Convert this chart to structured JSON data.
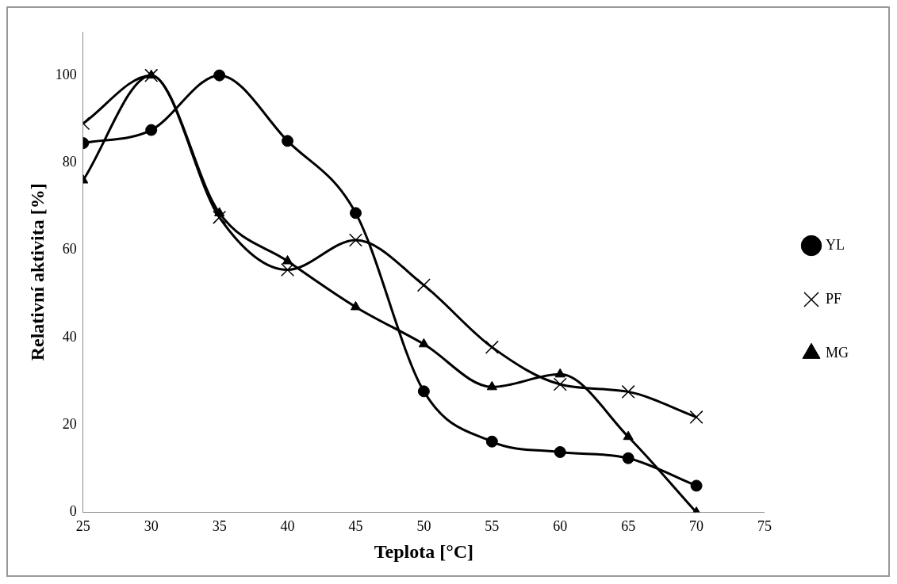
{
  "chart_data": {
    "type": "line",
    "xlabel": "Teplota [°C]",
    "ylabel": "Relativní aktivita [%]",
    "x": [
      25,
      30,
      35,
      40,
      45,
      50,
      55,
      60,
      65,
      70
    ],
    "series": [
      {
        "name": "YL",
        "color": "#000000",
        "marker": "circle",
        "values": [
          84.5,
          87.5,
          100,
          85,
          68.5,
          27.7,
          16.2,
          13.8,
          12.4,
          6.1
        ]
      },
      {
        "name": "PF",
        "color": "#000000",
        "marker": "cross",
        "values": [
          89,
          100,
          67.5,
          55.5,
          62.3,
          52,
          37.8,
          29.3,
          27.6,
          21.8
        ]
      },
      {
        "name": "MG",
        "color": "#000000",
        "marker": "triangle",
        "values": [
          76,
          100,
          68.5,
          57.5,
          47,
          38.5,
          28.7,
          31.6,
          17.3,
          0
        ]
      }
    ],
    "xlim": [
      25,
      75
    ],
    "xticks": [
      25,
      30,
      35,
      40,
      45,
      50,
      55,
      60,
      65,
      70,
      75
    ],
    "ylim": [
      0,
      110
    ],
    "yticks": [
      0,
      20,
      40,
      60,
      80,
      100
    ],
    "grid": false,
    "legend": "right",
    "line_style": "solid"
  }
}
